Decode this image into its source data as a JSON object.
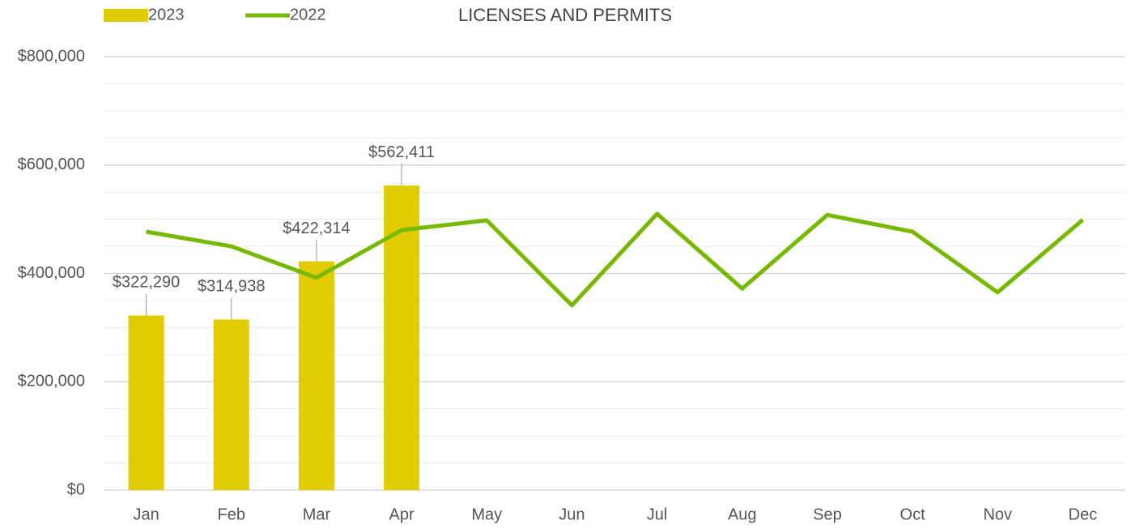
{
  "chart_data": {
    "type": "bar",
    "title": "LICENSES AND PERMITS",
    "categories": [
      "Jan",
      "Feb",
      "Mar",
      "Apr",
      "May",
      "Jun",
      "Jul",
      "Aug",
      "Sep",
      "Oct",
      "Nov",
      "Dec"
    ],
    "series": [
      {
        "name": "2023",
        "type": "bar",
        "color": "#e0cc00",
        "values": [
          322290,
          314938,
          422314,
          562411,
          null,
          null,
          null,
          null,
          null,
          null,
          null,
          null
        ],
        "value_labels": [
          "$322,290",
          "$314,938",
          "$422,314",
          "$562,411",
          null,
          null,
          null,
          null,
          null,
          null,
          null,
          null
        ]
      },
      {
        "name": "2022",
        "type": "line",
        "color": "#76b900",
        "values": [
          477000,
          450000,
          392000,
          480000,
          498000,
          341000,
          510000,
          372000,
          508000,
          477000,
          365000,
          499000
        ]
      }
    ],
    "ylim": [
      0,
      800000
    ],
    "yticks": [
      {
        "value": 0,
        "label": "$0"
      },
      {
        "value": 200000,
        "label": "$200,000"
      },
      {
        "value": 400000,
        "label": "$400,000"
      },
      {
        "value": 600000,
        "label": "$600,000"
      },
      {
        "value": 800000,
        "label": "$800,000"
      }
    ],
    "yminorticks": [
      50000,
      100000,
      150000,
      250000,
      300000,
      350000,
      450000,
      500000,
      550000,
      650000,
      700000,
      750000
    ],
    "grid": true,
    "legend": "top-left"
  }
}
